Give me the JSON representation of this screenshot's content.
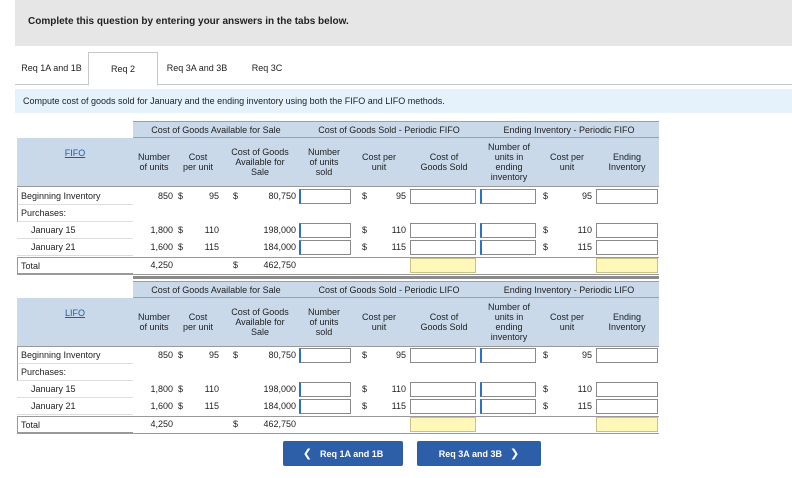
{
  "instruction": "Complete this question by entering your answers in the tabs below.",
  "tabs": [
    "Req 1A and 1B",
    "Req 2",
    "Req 3A and 3B",
    "Req 3C"
  ],
  "active_tab": "Req 2",
  "prompt": "Compute cost of goods sold for January and the ending inventory using both the FIFO and LIFO methods.",
  "group_headers": {
    "available": "Cost of Goods Available for Sale",
    "sold_fifo": "Cost of Goods Sold - Periodic FIFO",
    "ending_fifo": "Ending Inventory - Periodic FIFO",
    "sold_lifo": "Cost of Goods Sold - Periodic LIFO",
    "ending_lifo": "Ending Inventory - Periodic LIFO"
  },
  "columns": {
    "number_of_units": [
      "Number",
      "of units"
    ],
    "cost_per_unit": [
      "Cost",
      "per unit"
    ],
    "cogas": [
      "Cost of Goods",
      "Available for",
      "Sale"
    ],
    "units_sold": [
      "Number",
      "of units",
      "sold"
    ],
    "cost_per_unit_2": [
      "Cost per",
      "unit"
    ],
    "cogs": [
      "Cost of",
      "Goods Sold"
    ],
    "units_ending": [
      "Number of",
      "units in",
      "ending",
      "inventory"
    ],
    "cost_per_unit_3": [
      "Cost per",
      "unit"
    ],
    "ending_inventory": [
      "Ending",
      "Inventory"
    ]
  },
  "currency": "$",
  "row_labels": [
    "Beginning Inventory",
    "Purchases:",
    "January 15",
    "January 21",
    "Total"
  ],
  "fifo": {
    "label": "FIFO",
    "rows": [
      {
        "units": "850",
        "cost": "95",
        "cogas": "80,750",
        "sold_cost": "95",
        "end_cost": "95"
      },
      {
        "units": "1,800",
        "cost": "110",
        "cogas": "198,000",
        "sold_cost": "110",
        "end_cost": "110"
      },
      {
        "units": "1,600",
        "cost": "115",
        "cogas": "184,000",
        "sold_cost": "115",
        "end_cost": "115"
      }
    ],
    "total_units": "4,250",
    "total_cogas": "462,750"
  },
  "lifo": {
    "label": "LIFO",
    "rows": [
      {
        "units": "850",
        "cost": "95",
        "cogas": "80,750",
        "sold_cost": "95",
        "end_cost": "95"
      },
      {
        "units": "1,800",
        "cost": "110",
        "cogas": "198,000",
        "sold_cost": "110",
        "end_cost": "110"
      },
      {
        "units": "1,600",
        "cost": "115",
        "cogas": "184,000",
        "sold_cost": "115",
        "end_cost": "115"
      }
    ],
    "total_units": "4,250",
    "total_cogas": "462,750"
  },
  "nav": {
    "prev": "Req 1A and 1B",
    "next": "Req 3A and 3B"
  },
  "colors": {
    "header_bg": "#c9d9ea",
    "prompt_bg": "#e5f2fb",
    "total_input": "#fff8b8",
    "nav_button": "#2d5fa8",
    "link": "#1a5dab"
  }
}
